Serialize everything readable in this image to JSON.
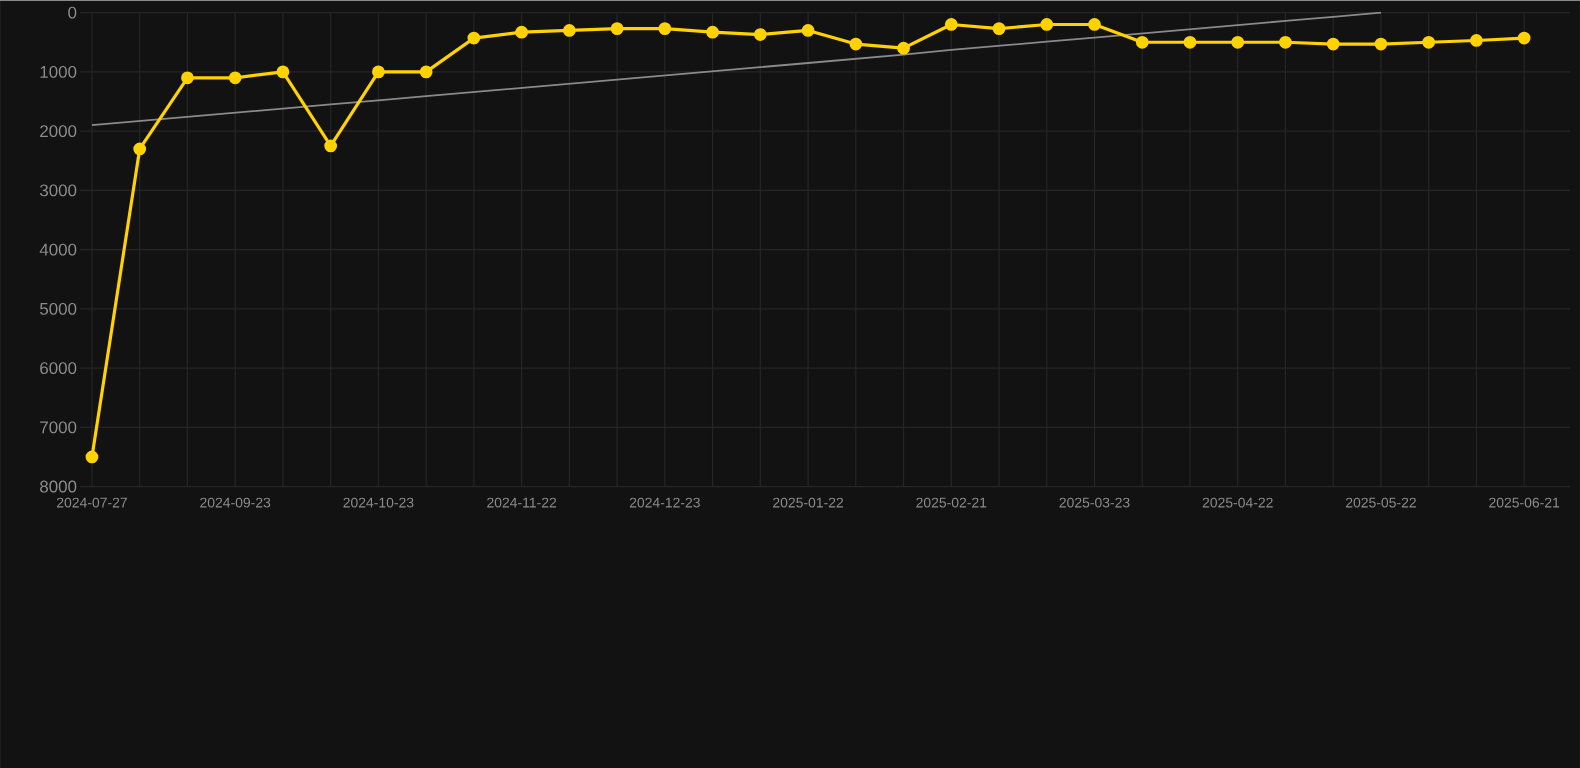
{
  "chart_data": {
    "type": "line",
    "categories": [
      "2024-07-27",
      null,
      null,
      "2024-09-23",
      null,
      null,
      "2024-10-23",
      null,
      null,
      "2024-11-22",
      null,
      null,
      "2024-12-23",
      null,
      null,
      "2025-01-22",
      null,
      null,
      "2025-02-21",
      null,
      null,
      "2025-03-23",
      null,
      null,
      "2025-04-22",
      null,
      null,
      "2025-05-22",
      null,
      null,
      "2025-06-21"
    ],
    "ylim": [
      8000,
      0
    ],
    "yticks": [
      0,
      1000,
      2000,
      3000,
      4000,
      5000,
      6000,
      7000,
      8000
    ],
    "grid": true,
    "series": [
      {
        "color": "#ffd200",
        "marker": "circle",
        "values": [
          7500,
          2300,
          1100,
          1100,
          1000,
          2250,
          1000,
          1000,
          430,
          330,
          300,
          270,
          270,
          330,
          370,
          300,
          530,
          600,
          200,
          270,
          200,
          200,
          500,
          500,
          500,
          500,
          530,
          530,
          500,
          470,
          430
        ]
      },
      {
        "color": "#8a8a8a",
        "marker": "none",
        "values": [
          1900,
          1830,
          1760,
          1690,
          1620,
          1550,
          1480,
          1410,
          1340,
          1270,
          1200,
          1130,
          1060,
          990,
          920,
          850,
          780,
          710,
          630,
          560,
          490,
          420,
          350,
          280,
          210,
          140,
          70,
          0,
          null,
          null,
          null
        ]
      }
    ]
  }
}
